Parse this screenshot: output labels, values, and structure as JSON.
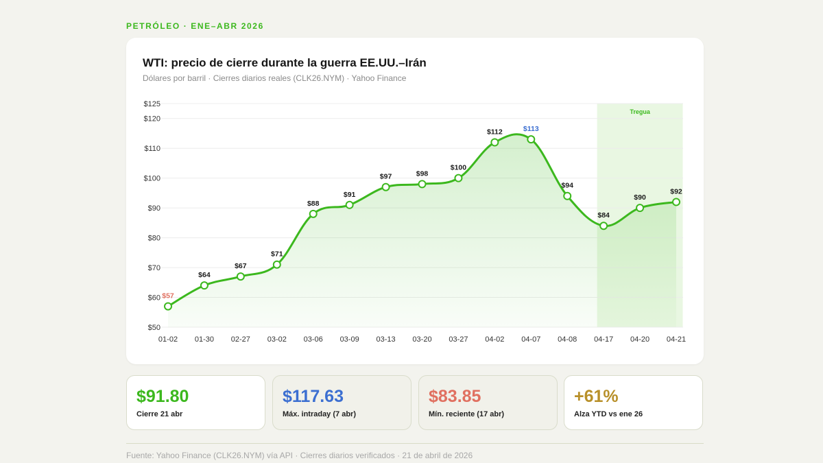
{
  "header": {
    "eyebrow": "PETRÓLEO · ENE–ABR 2026"
  },
  "colors": {
    "line": "#3cb81e",
    "max": "#3c6fd1",
    "min": "#e07060",
    "positive": "#b8902a",
    "truce_band": "#e9f7e2"
  },
  "chart_data": {
    "type": "line",
    "title": "WTI: precio de cierre durante la guerra EE.UU.–Irán",
    "subtitle": "Dólares por barril · Cierres diarios reales (CLK26.NYM) · Yahoo Finance",
    "categories": [
      "01-02",
      "01-30",
      "02-27",
      "03-02",
      "03-06",
      "03-09",
      "03-13",
      "03-20",
      "03-27",
      "04-02",
      "04-07",
      "04-08",
      "04-17",
      "04-20",
      "04-21"
    ],
    "series": [
      {
        "values": [
          57,
          64,
          67,
          71,
          88,
          91,
          97,
          98,
          100,
          112,
          113,
          94,
          84,
          90,
          92
        ]
      }
    ],
    "point_labels": [
      "$57",
      "$64",
      "$67",
      "$71",
      "$88",
      "$91",
      "$97",
      "$98",
      "$100",
      "$112",
      "$113",
      "$94",
      "$84",
      "$90",
      "$92"
    ],
    "highlight": {
      "min_index": 0,
      "max_index": 10
    },
    "ylim": [
      50,
      125
    ],
    "yticks": [
      50,
      60,
      70,
      80,
      90,
      100,
      110,
      120,
      125
    ],
    "ytick_labels": [
      "$50",
      "$60",
      "$70",
      "$80",
      "$90",
      "$100",
      "$110",
      "$120",
      "$125"
    ],
    "grid": true,
    "shaded_region": {
      "label": "Tregua",
      "from_category": "04-17",
      "to_category": "04-21"
    }
  },
  "stats": [
    {
      "value": "$91.80",
      "label": "Cierre 21 abr",
      "color": "#3cb81e"
    },
    {
      "value": "$117.63",
      "label": "Máx. intraday (7 abr)",
      "color": "#3c6fd1"
    },
    {
      "value": "$83.85",
      "label": "Mín. reciente (17 abr)",
      "color": "#e07060"
    },
    {
      "value": "+61%",
      "label": "Alza YTD vs ene 26",
      "color": "#b8902a"
    }
  ],
  "footer": {
    "source": "Fuente: Yahoo Finance (CLK26.NYM) vía API · Cierres diarios verificados · 21 de abril de 2026"
  }
}
